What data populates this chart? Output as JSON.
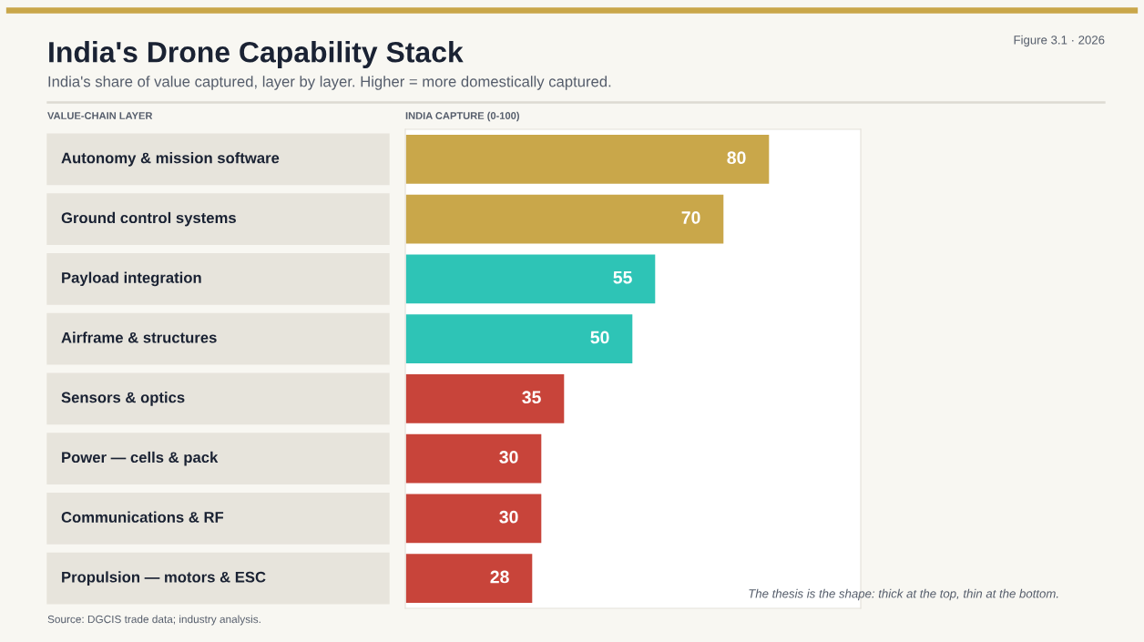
{
  "chart_data": {
    "type": "bar",
    "orientation": "horizontal",
    "title": "India's Drone Capability Stack",
    "subtitle": "India's share of value captured, layer by layer. Higher = more domestically captured.",
    "ylabel": "VALUE-CHAIN LAYER",
    "xlabel": "INDIA CAPTURE (0-100)",
    "categories": [
      "Autonomy & mission software",
      "Ground control systems",
      "Payload integration",
      "Airframe & structures",
      "Sensors & optics",
      "Power — cells & pack",
      "Communications & RF",
      "Propulsion — motors & ESC"
    ],
    "values": [
      80,
      70,
      55,
      50,
      35,
      30,
      30,
      28
    ],
    "colors": [
      "#c9a74a",
      "#c9a74a",
      "#2ec4b6",
      "#2ec4b6",
      "#c8443a",
      "#c8443a",
      "#c8443a",
      "#c8443a"
    ],
    "xlim": [
      0,
      100
    ],
    "data_labels": true,
    "tick_labels": "y",
    "annotations": [
      "Figure 3.1 · 2026",
      "The thesis is the shape: thick at the top, thin at the bottom.",
      "Source: DGCIS trade data; industry analysis."
    ]
  }
}
